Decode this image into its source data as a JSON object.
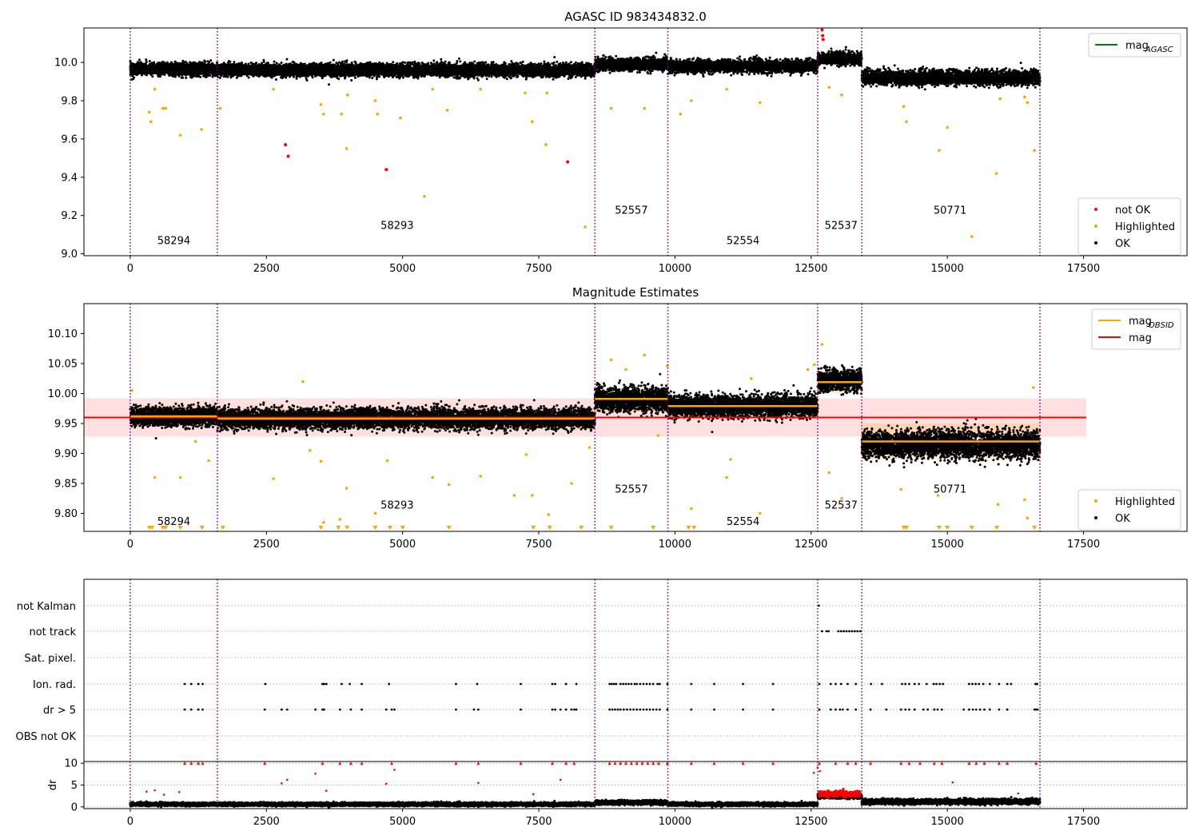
{
  "chart_data": [
    {
      "type": "scatter",
      "title": "AGASC ID 983434832.0",
      "xlim": [
        -850,
        19400
      ],
      "ylim": [
        8.99,
        10.18
      ],
      "xticks": [
        0,
        2500,
        5000,
        7500,
        10000,
        12500,
        15000,
        17500
      ],
      "yticks": [
        9.0,
        9.2,
        9.4,
        9.6,
        9.8,
        10.0
      ],
      "ytick_labels": [
        "9.0",
        "9.2",
        "9.4",
        "9.6",
        "9.8",
        "10.0"
      ],
      "obsid_boundaries": [
        0,
        1600,
        8530,
        9870,
        12620,
        13430,
        16700
      ],
      "obsid_labels": [
        {
          "label": "58294",
          "x": 800,
          "y": 9.05
        },
        {
          "label": "58293",
          "x": 4900,
          "y": 9.13
        },
        {
          "label": "52557",
          "x": 9200,
          "y": 9.21
        },
        {
          "label": "52554",
          "x": 11250,
          "y": 9.05
        },
        {
          "label": "52537",
          "x": 13050,
          "y": 9.13
        },
        {
          "label": "50771",
          "x": 15050,
          "y": 9.21
        }
      ],
      "segments": [
        {
          "x0": 0,
          "x1": 1600,
          "mean": 9.965,
          "spread": 0.035
        },
        {
          "x0": 1600,
          "x1": 8530,
          "mean": 9.96,
          "spread": 0.035
        },
        {
          "x0": 8530,
          "x1": 9870,
          "mean": 9.99,
          "spread": 0.035
        },
        {
          "x0": 9870,
          "x1": 12620,
          "mean": 9.98,
          "spread": 0.035
        },
        {
          "x0": 12620,
          "x1": 13430,
          "mean": 10.02,
          "spread": 0.035
        },
        {
          "x0": 13430,
          "x1": 16700,
          "mean": 9.92,
          "spread": 0.04
        }
      ],
      "not_ok_points": [
        [
          2850,
          9.57
        ],
        [
          2900,
          9.51
        ],
        [
          4700,
          9.44
        ],
        [
          8030,
          9.48
        ],
        [
          12700,
          10.17
        ],
        [
          12710,
          10.14
        ],
        [
          12720,
          10.12
        ]
      ],
      "highlighted_points": [
        [
          350,
          9.74
        ],
        [
          380,
          9.69
        ],
        [
          450,
          9.86
        ],
        [
          600,
          9.76
        ],
        [
          650,
          9.76
        ],
        [
          920,
          9.62
        ],
        [
          1310,
          9.65
        ],
        [
          1650,
          9.76
        ],
        [
          2630,
          9.86
        ],
        [
          3500,
          9.78
        ],
        [
          3550,
          9.73
        ],
        [
          3880,
          9.73
        ],
        [
          3970,
          9.55
        ],
        [
          3990,
          9.83
        ],
        [
          4500,
          9.8
        ],
        [
          4540,
          9.73
        ],
        [
          4960,
          9.71
        ],
        [
          5400,
          9.3
        ],
        [
          5550,
          9.86
        ],
        [
          5820,
          9.75
        ],
        [
          6430,
          9.86
        ],
        [
          7250,
          9.84
        ],
        [
          7380,
          9.69
        ],
        [
          7630,
          9.57
        ],
        [
          7650,
          9.84
        ],
        [
          8350,
          9.14
        ],
        [
          8830,
          9.76
        ],
        [
          9440,
          9.76
        ],
        [
          10100,
          9.73
        ],
        [
          10300,
          9.8
        ],
        [
          10950,
          9.86
        ],
        [
          11560,
          9.79
        ],
        [
          12830,
          9.87
        ],
        [
          13060,
          9.83
        ],
        [
          14200,
          9.77
        ],
        [
          14250,
          9.69
        ],
        [
          14850,
          9.54
        ],
        [
          15000,
          9.66
        ],
        [
          15450,
          9.09
        ],
        [
          15900,
          9.42
        ],
        [
          15970,
          9.81
        ],
        [
          16420,
          9.82
        ],
        [
          16470,
          9.79
        ],
        [
          16600,
          9.54
        ]
      ],
      "legend": {
        "lines": [
          {
            "label_main": "mag",
            "label_sub": "AGASC",
            "color": "#008000"
          }
        ],
        "markers": [
          {
            "label": "not OK",
            "color": "#ff0000"
          },
          {
            "label": "Highlighted",
            "color": "#ffa500"
          },
          {
            "label": "OK",
            "color": "#000000"
          }
        ]
      }
    },
    {
      "type": "scatter",
      "title": "Magnitude Estimates",
      "xlim": [
        -850,
        19400
      ],
      "ylim": [
        9.77,
        10.15
      ],
      "xticks": [
        0,
        2500,
        5000,
        7500,
        10000,
        12500,
        15000,
        17500
      ],
      "yticks": [
        9.8,
        9.85,
        9.9,
        9.95,
        10.0,
        10.05,
        10.1
      ],
      "ytick_labels": [
        "9.80",
        "9.85",
        "9.90",
        "9.95",
        "10.00",
        "10.05",
        "10.10"
      ],
      "obsid_boundaries": [
        0,
        1600,
        8530,
        9870,
        12620,
        13430,
        16700
      ],
      "obsid_labels": [
        {
          "label": "58294",
          "x": 800,
          "y": 9.781
        },
        {
          "label": "58293",
          "x": 4900,
          "y": 9.808
        },
        {
          "label": "52557",
          "x": 9200,
          "y": 9.835
        },
        {
          "label": "52554",
          "x": 11250,
          "y": 9.781
        },
        {
          "label": "52537",
          "x": 13050,
          "y": 9.808
        },
        {
          "label": "50771",
          "x": 15050,
          "y": 9.835
        }
      ],
      "mag": 9.96,
      "mag_band": [
        9.928,
        9.992
      ],
      "mag_xrange": [
        -850,
        17550
      ],
      "obsid_mags": [
        {
          "x0": 0,
          "x1": 1600,
          "mag": 9.962
        },
        {
          "x0": 1600,
          "x1": 8530,
          "mag": 9.958
        },
        {
          "x0": 8530,
          "x1": 9870,
          "mag": 9.991
        },
        {
          "x0": 9870,
          "x1": 12620,
          "mag": 9.979
        },
        {
          "x0": 12620,
          "x1": 13430,
          "mag": 10.019
        },
        {
          "x0": 13430,
          "x1": 16700,
          "mag": 9.92
        }
      ],
      "obsid_bands": [
        {
          "x0": 0,
          "x1": 1600,
          "lo": 9.945,
          "hi": 9.98
        },
        {
          "x0": 1600,
          "x1": 8530,
          "lo": 9.94,
          "hi": 9.976
        },
        {
          "x0": 8530,
          "x1": 9870,
          "lo": 9.97,
          "hi": 10.01
        },
        {
          "x0": 9870,
          "x1": 12620,
          "lo": 9.96,
          "hi": 9.995
        },
        {
          "x0": 12620,
          "x1": 13430,
          "lo": 10.0,
          "hi": 10.04
        },
        {
          "x0": 13430,
          "x1": 16700,
          "lo": 9.89,
          "hi": 9.95
        }
      ],
      "segments": [
        {
          "x0": 0,
          "x1": 1600,
          "mean": 9.962,
          "spread": 0.017
        },
        {
          "x0": 1600,
          "x1": 8530,
          "mean": 9.958,
          "spread": 0.018
        },
        {
          "x0": 8530,
          "x1": 9870,
          "mean": 9.99,
          "spread": 0.022
        },
        {
          "x0": 9870,
          "x1": 12620,
          "mean": 9.979,
          "spread": 0.02
        },
        {
          "x0": 12620,
          "x1": 13430,
          "mean": 10.022,
          "spread": 0.02
        },
        {
          "x0": 13430,
          "x1": 16700,
          "mean": 9.915,
          "spread": 0.025
        }
      ],
      "highlighted_points": [
        [
          30,
          10.005
        ],
        [
          450,
          9.86
        ],
        [
          920,
          9.86
        ],
        [
          1200,
          9.92
        ],
        [
          1440,
          9.888
        ],
        [
          2630,
          9.858
        ],
        [
          3170,
          10.02
        ],
        [
          3300,
          9.905
        ],
        [
          3500,
          9.887
        ],
        [
          3550,
          9.785
        ],
        [
          3850,
          9.79
        ],
        [
          3970,
          9.842
        ],
        [
          4500,
          9.8
        ],
        [
          4720,
          9.888
        ],
        [
          5550,
          9.86
        ],
        [
          5850,
          9.848
        ],
        [
          6430,
          9.862
        ],
        [
          7050,
          9.83
        ],
        [
          7270,
          9.898
        ],
        [
          7380,
          9.83
        ],
        [
          7680,
          9.798
        ],
        [
          8100,
          9.85
        ],
        [
          8430,
          9.91
        ],
        [
          8830,
          10.056
        ],
        [
          9100,
          10.04
        ],
        [
          9440,
          10.064
        ],
        [
          9690,
          9.93
        ],
        [
          9860,
          10.046
        ],
        [
          10300,
          9.808
        ],
        [
          10950,
          9.86
        ],
        [
          11020,
          9.89
        ],
        [
          11400,
          10.025
        ],
        [
          11560,
          9.8
        ],
        [
          12440,
          10.04
        ],
        [
          12560,
          10.048
        ],
        [
          12700,
          10.082
        ],
        [
          12830,
          9.868
        ],
        [
          13060,
          9.825
        ],
        [
          14150,
          9.84
        ],
        [
          14830,
          9.83
        ],
        [
          15930,
          9.815
        ],
        [
          16420,
          9.823
        ],
        [
          16470,
          9.792
        ],
        [
          16580,
          10.01
        ]
      ],
      "clipped_points_x": [
        350,
        400,
        600,
        650,
        920,
        1320,
        1700,
        3500,
        3820,
        3980,
        4500,
        4770,
        5000,
        5850,
        7400,
        7700,
        8280,
        8830,
        9600,
        10250,
        10350,
        14200,
        14250,
        14850,
        15000,
        15450,
        15910,
        16600
      ],
      "legend": {
        "lines": [
          {
            "label_main": "mag",
            "label_sub": "OBSID",
            "color": "#ffa500"
          },
          {
            "label_main": "mag",
            "label_sub": "",
            "color": "#ff0000"
          }
        ],
        "markers": [
          {
            "label": "Highlighted",
            "color": "#ffa500"
          },
          {
            "label": "OK",
            "color": "#000000"
          }
        ]
      }
    },
    {
      "type": "scatter",
      "xlim": [
        -850,
        19400
      ],
      "xticks": [
        0,
        2500,
        5000,
        7500,
        10000,
        12500,
        15000,
        17500
      ],
      "obsid_boundaries": [
        0,
        1600,
        8530,
        9870,
        12620,
        13430,
        16700
      ],
      "flag_rows": [
        "not Kalman",
        "not track",
        "Sat. pixel.",
        "Ion. rad.",
        "dr > 5",
        "OBS not OK"
      ],
      "flag_points": {
        "not Kalman": [
          12640
        ],
        "not track": [
          12700,
          12780,
          12820,
          13000,
          13050,
          13100,
          13150,
          13200,
          13250,
          13300,
          13350,
          13400
        ],
        "Sat. pixel.": [],
        "Ion. rad.": [
          1000,
          1120,
          1250,
          1330,
          2480,
          3530,
          3560,
          3600,
          3880,
          4030,
          4250,
          4750,
          5980,
          6370,
          7170,
          7750,
          7800,
          8000,
          8190,
          8800,
          8840,
          8880,
          8920,
          9000,
          9050,
          9100,
          9150,
          9200,
          9260,
          9300,
          9360,
          9420,
          9480,
          9540,
          9600,
          9680,
          9720,
          9860,
          10300,
          10720,
          11250,
          11800,
          12650,
          12860,
          12950,
          13050,
          13170,
          13320,
          13600,
          13800,
          14170,
          14230,
          14300,
          14400,
          14480,
          14620,
          14750,
          14800,
          14860,
          14920,
          15400,
          15460,
          15520,
          15580,
          15660,
          15780,
          15950,
          16100,
          16170,
          16620,
          16650
        ],
        "dr > 5": [
          1000,
          1120,
          1250,
          1330,
          2470,
          2780,
          2880,
          3400,
          3530,
          3560,
          3850,
          4050,
          4250,
          4700,
          4800,
          4850,
          5980,
          6310,
          6390,
          7170,
          7750,
          7800,
          7900,
          8000,
          8100,
          8150,
          8190,
          8800,
          8850,
          8900,
          8950,
          9000,
          9060,
          9120,
          9180,
          9240,
          9300,
          9360,
          9420,
          9480,
          9540,
          9600,
          9660,
          9720,
          9860,
          10300,
          10720,
          11250,
          11800,
          12650,
          12860,
          12950,
          13030,
          13080,
          13170,
          13320,
          13590,
          13880,
          14150,
          14230,
          14300,
          14400,
          14560,
          14640,
          14760,
          14820,
          14900,
          15300,
          15400,
          15470,
          15530,
          15600,
          15680,
          15780,
          15950,
          16100,
          16600,
          16630,
          16660
        ],
        "OBS not OK": []
      },
      "dr_ylabel": "dr",
      "dr_ylim": [
        -0.4,
        10.4
      ],
      "dr_yticks": [
        0,
        5,
        10
      ],
      "dr_segments": [
        {
          "x0": 0,
          "x1": 1600,
          "mean": 0.6,
          "spread": 0.4
        },
        {
          "x0": 1600,
          "x1": 8530,
          "mean": 0.6,
          "spread": 0.4
        },
        {
          "x0": 8530,
          "x1": 9870,
          "mean": 1.0,
          "spread": 0.5
        },
        {
          "x0": 9870,
          "x1": 12620,
          "mean": 0.6,
          "spread": 0.4
        },
        {
          "x0": 12620,
          "x1": 13430,
          "mean": 2.5,
          "spread": 0.6
        },
        {
          "x0": 13430,
          "x1": 16700,
          "mean": 1.2,
          "spread": 0.6
        }
      ],
      "dr_red_points": [
        [
          1000,
          10
        ],
        [
          1120,
          10
        ],
        [
          1250,
          10
        ],
        [
          1330,
          10
        ],
        [
          2470,
          10
        ],
        [
          3530,
          10
        ],
        [
          3850,
          10
        ],
        [
          4050,
          10
        ],
        [
          4250,
          10
        ],
        [
          4800,
          10
        ],
        [
          5980,
          10
        ],
        [
          6390,
          10
        ],
        [
          7170,
          10
        ],
        [
          7750,
          10
        ],
        [
          8000,
          10
        ],
        [
          8150,
          10
        ],
        [
          8800,
          10
        ],
        [
          8900,
          10
        ],
        [
          9000,
          10
        ],
        [
          9100,
          10
        ],
        [
          9200,
          10
        ],
        [
          9300,
          10
        ],
        [
          9400,
          10
        ],
        [
          9500,
          10
        ],
        [
          9600,
          10
        ],
        [
          9700,
          10
        ],
        [
          9860,
          10
        ],
        [
          10300,
          10
        ],
        [
          10720,
          10
        ],
        [
          11250,
          10
        ],
        [
          11800,
          10
        ],
        [
          12650,
          10
        ],
        [
          12950,
          10
        ],
        [
          13170,
          10
        ],
        [
          13320,
          10
        ],
        [
          13590,
          10
        ],
        [
          14150,
          10
        ],
        [
          14300,
          10
        ],
        [
          14500,
          10
        ],
        [
          14760,
          10
        ],
        [
          14900,
          10
        ],
        [
          15400,
          10
        ],
        [
          15530,
          10
        ],
        [
          15680,
          10
        ],
        [
          15950,
          10
        ],
        [
          16100,
          10
        ],
        [
          16630,
          10
        ],
        [
          300,
          3.5
        ],
        [
          450,
          3.8
        ],
        [
          620,
          2.8
        ],
        [
          900,
          3.4
        ],
        [
          2780,
          5.4
        ],
        [
          2880,
          6.2
        ],
        [
          3400,
          7.6
        ],
        [
          3600,
          3.7
        ],
        [
          4700,
          5.3
        ],
        [
          4850,
          8.5
        ],
        [
          6390,
          5.5
        ],
        [
          7400,
          2.9
        ],
        [
          7900,
          6.2
        ],
        [
          12550,
          7.8
        ],
        [
          12620,
          9
        ],
        [
          12660,
          8.2
        ],
        [
          15100,
          5.6
        ],
        [
          16300,
          3.1
        ]
      ],
      "dr_red_cluster": {
        "x0": 12640,
        "x1": 13400,
        "mean": 3.0,
        "spread": 0.7
      }
    }
  ]
}
